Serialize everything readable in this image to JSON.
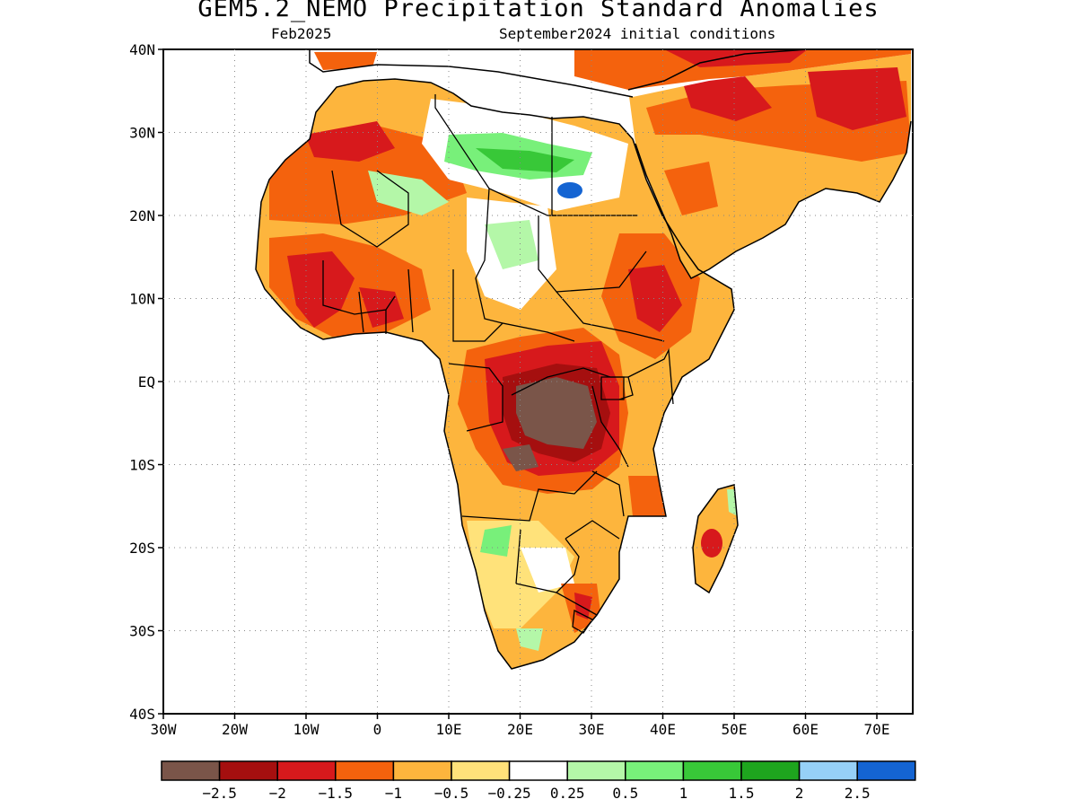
{
  "title": "GEM5.2_NEMO Precipitation Standard Anomalies",
  "subtitle_left": "Feb2025",
  "subtitle_right": "September2024 initial conditions",
  "y_ticks": [
    "40N",
    "30N",
    "20N",
    "10N",
    "EQ",
    "10S",
    "20S",
    "30S",
    "40S"
  ],
  "x_ticks": [
    "30W",
    "20W",
    "10W",
    "0",
    "10E",
    "20E",
    "30E",
    "40E",
    "50E",
    "60E",
    "70E"
  ],
  "colorbar": {
    "colors": [
      "#7a5549",
      "#a50f0f",
      "#d7191c",
      "#f4620d",
      "#fdb53d",
      "#ffe27a",
      "#ffffff",
      "#b4f7a8",
      "#78f07a",
      "#38c838",
      "#1ea51e",
      "#96d0f7",
      "#1464d2"
    ],
    "labels": [
      "-2.5",
      "-2",
      "-1.5",
      "-1",
      "-0.5",
      "-0.25",
      "0.25",
      "0.5",
      "1",
      "1.5",
      "2",
      "2.5"
    ]
  }
}
